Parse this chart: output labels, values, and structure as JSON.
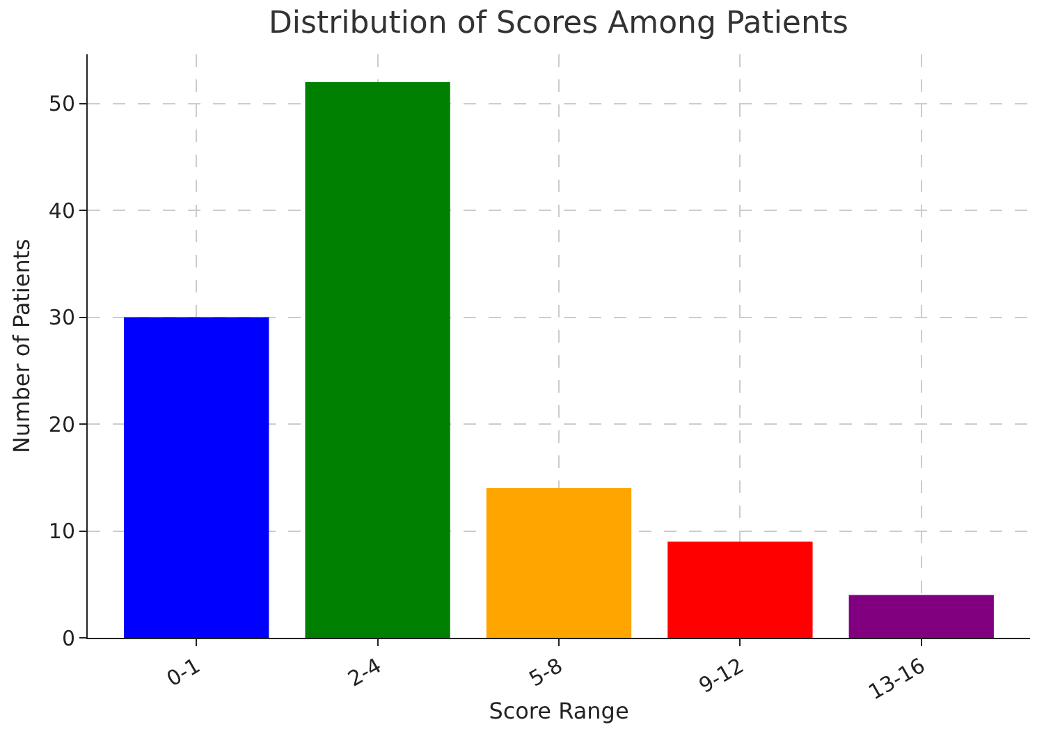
{
  "chart_data": {
    "type": "bar",
    "title": "Distribution of Scores Among Patients",
    "xlabel": "Score Range",
    "ylabel": "Number of Patients",
    "categories": [
      "0-1",
      "2-4",
      "5-8",
      "9-12",
      "13-16"
    ],
    "values": [
      30,
      52,
      14,
      9,
      4
    ],
    "colors": [
      "#0000ff",
      "#008000",
      "#ffa500",
      "#ff0000",
      "#800080"
    ],
    "ylim": [
      0,
      54.6
    ],
    "yticks": [
      0,
      10,
      20,
      30,
      40,
      50
    ],
    "grid": true
  }
}
